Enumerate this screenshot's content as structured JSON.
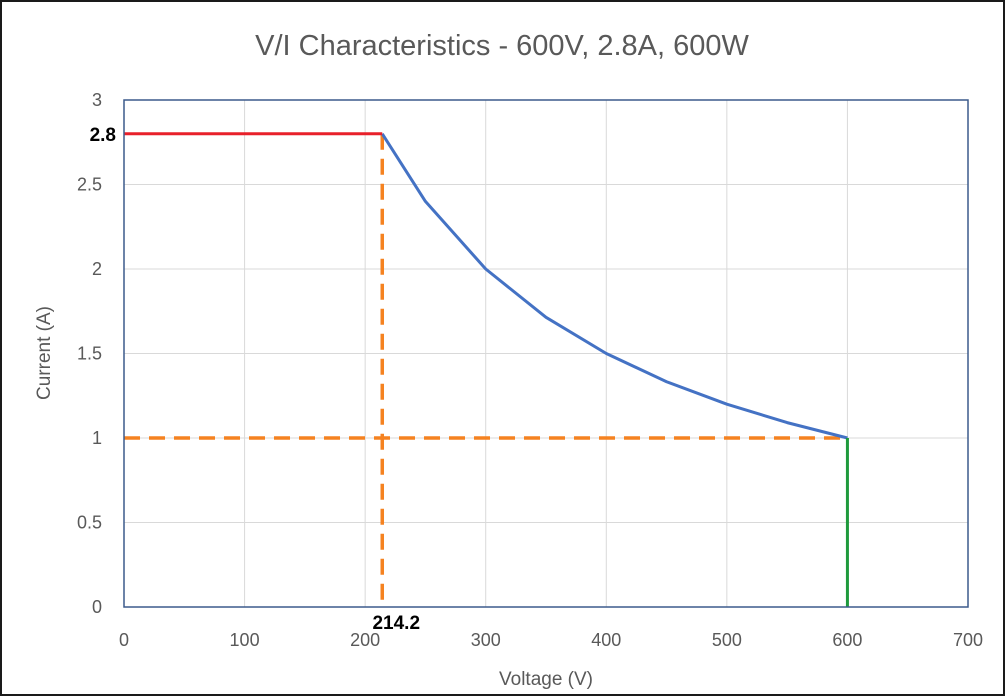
{
  "chart_data": {
    "type": "line",
    "title": "V/I Characteristics - 600V, 2.8A, 600W",
    "xlabel": "Voltage (V)",
    "ylabel": "Current (A)",
    "xlim": [
      0,
      700
    ],
    "ylim": [
      0,
      3
    ],
    "x_ticks": [
      "0",
      "100",
      "200",
      "300",
      "400",
      "500",
      "600",
      "700"
    ],
    "y_ticks": [
      "0",
      "0.5",
      "1",
      "1.5",
      "2",
      "2.5",
      "3"
    ],
    "grid": true,
    "legend": "none",
    "series": [
      {
        "x": [
          0,
          214.2
        ],
        "y": [
          2.8,
          2.8
        ],
        "color": "#e8202a",
        "style": "solid"
      },
      {
        "x": [
          214.2,
          250,
          300,
          350,
          400,
          450,
          500,
          550,
          600
        ],
        "y": [
          2.8,
          2.4,
          2.0,
          1.714,
          1.5,
          1.333,
          1.2,
          1.091,
          1.0
        ],
        "color": "#4472c4",
        "style": "solid"
      },
      {
        "x": [
          600,
          600
        ],
        "y": [
          1,
          0
        ],
        "color": "#1e9a3c",
        "style": "solid"
      },
      {
        "x": [
          0,
          600
        ],
        "y": [
          1,
          1
        ],
        "color": "#f58220",
        "style": "dashed"
      },
      {
        "x": [
          214.2,
          214.2
        ],
        "y": [
          2.8,
          0
        ],
        "color": "#f58220",
        "style": "dashed"
      }
    ],
    "annotations": [
      {
        "text": "2.8",
        "x": 0,
        "y": 2.8
      },
      {
        "text": "214.2",
        "x": 214.2,
        "y": 0
      }
    ]
  },
  "colors": {
    "plot_border": "#3c5a8c",
    "gridline": "#d9d9d9",
    "text": "#595959"
  }
}
